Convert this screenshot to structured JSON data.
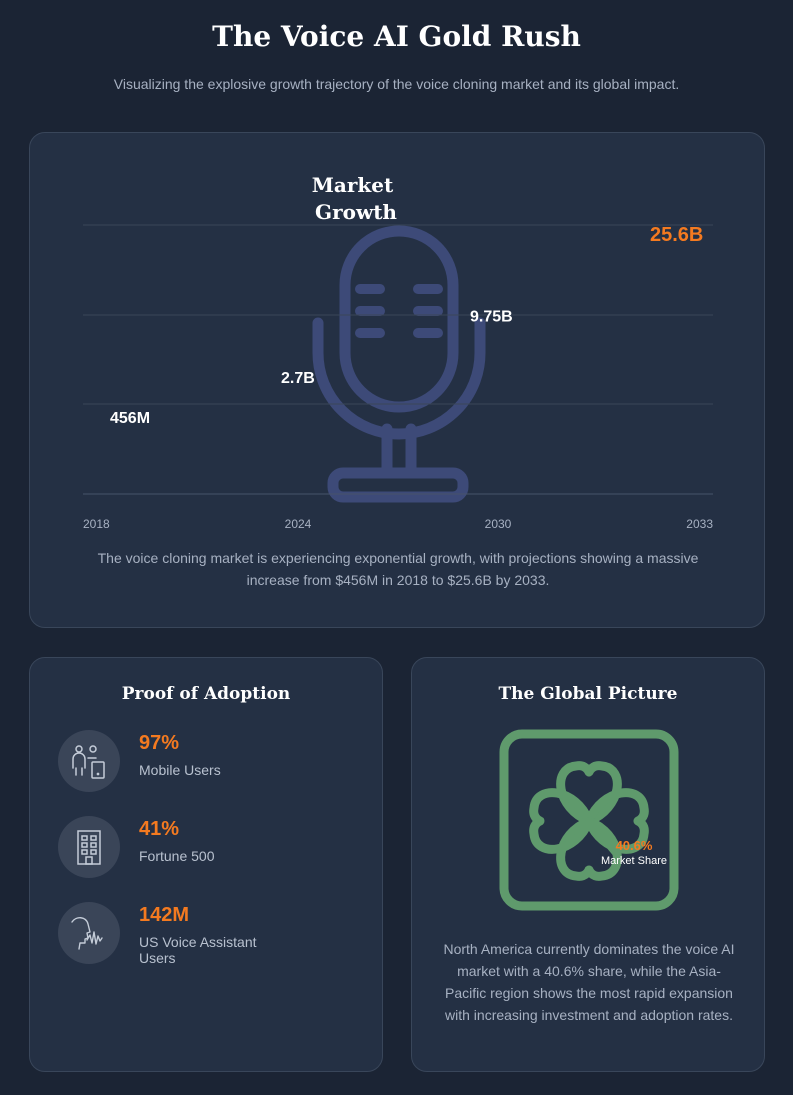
{
  "header": {
    "title": "The Voice AI Gold Rush",
    "subtitle": "Visualizing the explosive growth trajectory of the voice cloning market and its global impact."
  },
  "growth": {
    "description": "The voice cloning market is experiencing exponential growth, with projections showing a massive increase from $456M in 2018 to $25.6B by 2033."
  },
  "chart_data": {
    "type": "line",
    "title": "Market Growth",
    "x": [
      "2018",
      "2024",
      "2030",
      "2033"
    ],
    "values": [
      0.456,
      2.7,
      9.75,
      25.6
    ],
    "value_labels": [
      "456M",
      "2.7B",
      "9.75B",
      "25.6B"
    ],
    "xlabel": "",
    "ylabel": "",
    "grid": true,
    "highlight_color": "#f47a20",
    "label_color": "#ffffff"
  },
  "adoption": {
    "title": "Proof of Adoption",
    "stats": [
      {
        "value": "97%",
        "label": "Mobile Users",
        "icon": "mobile-users-icon"
      },
      {
        "value": "41%",
        "label": "Fortune 500",
        "icon": "office-building-icon"
      },
      {
        "value": "142M",
        "label": "US Voice Assistant Users",
        "icon": "voice-assistant-icon"
      }
    ]
  },
  "global": {
    "title": "The Global Picture",
    "share_value": "40.6%",
    "share_label": "Market Share",
    "description": "North America currently dominates the voice AI market with a 40.6% share, while the Asia-Pacific region shows the most rapid expansion with increasing investment and adoption rates.",
    "icon": "clover-icon",
    "icon_color": "#5f9a6c"
  },
  "colors": {
    "accent": "#f47a20",
    "background": "#1b2434",
    "card": "#243044"
  }
}
